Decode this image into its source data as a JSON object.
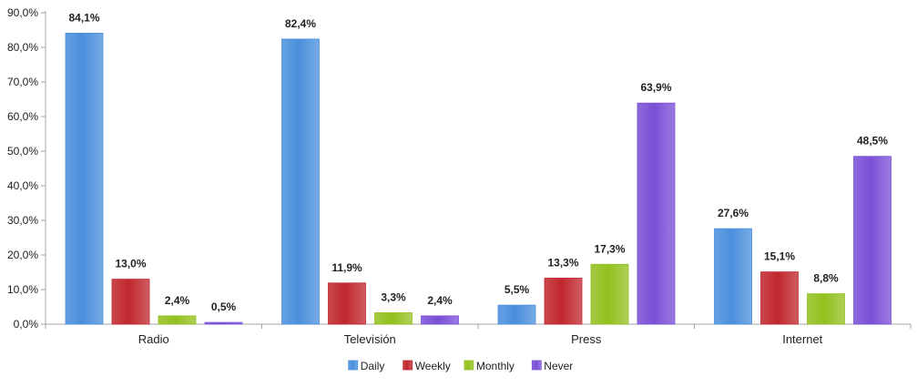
{
  "chart_data": {
    "type": "bar",
    "categories": [
      "Radio",
      "Televisión",
      "Press",
      "Internet"
    ],
    "series": [
      {
        "name": "Daily",
        "color": "#4a8fdc",
        "values": [
          84.1,
          82.4,
          5.5,
          27.6
        ],
        "labels": [
          "84,1%",
          "82,4%",
          "5,5%",
          "27,6%"
        ]
      },
      {
        "name": "Weekly",
        "color": "#c0272d",
        "values": [
          13.0,
          11.9,
          13.3,
          15.1
        ],
        "labels": [
          "13,0%",
          "11,9%",
          "13,3%",
          "15,1%"
        ]
      },
      {
        "name": "Monthly",
        "color": "#93c01f",
        "values": [
          2.4,
          3.3,
          17.3,
          8.8
        ],
        "labels": [
          "2,4%",
          "3,3%",
          "17,3%",
          "8,8%"
        ]
      },
      {
        "name": "Never",
        "color": "#7a4fd6",
        "values": [
          0.5,
          2.4,
          63.9,
          48.5
        ],
        "labels": [
          "0,5%",
          "2,4%",
          "63,9%",
          "48,5%"
        ]
      }
    ],
    "ylim": [
      0,
      90
    ],
    "yticks": [
      "0,0%",
      "10,0%",
      "20,0%",
      "30,0%",
      "40,0%",
      "50,0%",
      "60,0%",
      "70,0%",
      "80,0%",
      "90,0%"
    ],
    "grid": false,
    "legend_position": "bottom",
    "title": "",
    "xlabel": "",
    "ylabel": ""
  }
}
